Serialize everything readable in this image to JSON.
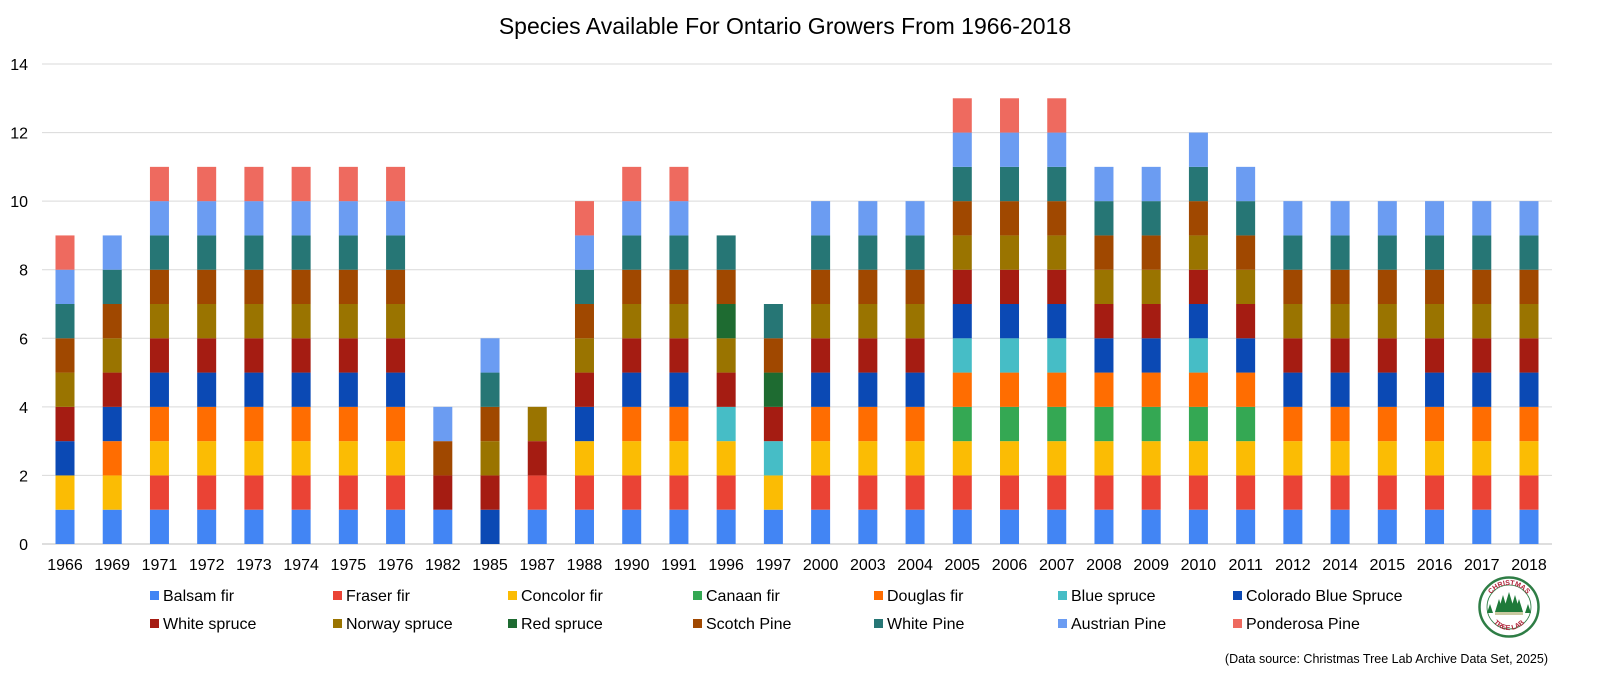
{
  "chart_data": {
    "type": "bar",
    "stacked": true,
    "title": "Species Available For Ontario Growers From 1966-2018",
    "xlabel": "",
    "ylabel": "",
    "ylim": [
      0,
      14
    ],
    "yticks": [
      0,
      2,
      4,
      6,
      8,
      10,
      12,
      14
    ],
    "grid": true,
    "legend_position": "bottom",
    "categories": [
      "1966",
      "1969",
      "1971",
      "1972",
      "1973",
      "1974",
      "1975",
      "1976",
      "1982",
      "1985",
      "1987",
      "1988",
      "1990",
      "1991",
      "1996",
      "1997",
      "2000",
      "2003",
      "2004",
      "2005",
      "2006",
      "2007",
      "2008",
      "2009",
      "2010",
      "2011",
      "2012",
      "2014",
      "2015",
      "2016",
      "2017",
      "2018"
    ],
    "series": [
      {
        "name": "Balsam fir",
        "color": "#4285f4",
        "values": [
          1,
          1,
          1,
          1,
          1,
          1,
          1,
          1,
          1,
          0,
          1,
          1,
          1,
          1,
          1,
          1,
          1,
          1,
          1,
          1,
          1,
          1,
          1,
          1,
          1,
          1,
          1,
          1,
          1,
          1,
          1,
          1
        ]
      },
      {
        "name": "Fraser fir",
        "color": "#ea4335",
        "values": [
          0,
          0,
          1,
          1,
          1,
          1,
          1,
          1,
          0,
          0,
          1,
          1,
          1,
          1,
          1,
          0,
          1,
          1,
          1,
          1,
          1,
          1,
          1,
          1,
          1,
          1,
          1,
          1,
          1,
          1,
          1,
          1
        ]
      },
      {
        "name": "Concolor fir",
        "color": "#fbbc04",
        "values": [
          1,
          1,
          1,
          1,
          1,
          1,
          1,
          1,
          0,
          0,
          0,
          1,
          1,
          1,
          1,
          1,
          1,
          1,
          1,
          1,
          1,
          1,
          1,
          1,
          1,
          1,
          1,
          1,
          1,
          1,
          1,
          1
        ]
      },
      {
        "name": "Canaan fir",
        "color": "#34a853",
        "values": [
          0,
          0,
          0,
          0,
          0,
          0,
          0,
          0,
          0,
          0,
          0,
          0,
          0,
          0,
          0,
          0,
          0,
          0,
          0,
          1,
          1,
          1,
          1,
          1,
          1,
          1,
          0,
          0,
          0,
          0,
          0,
          0
        ]
      },
      {
        "name": "Douglas fir",
        "color": "#ff6d01",
        "values": [
          0,
          1,
          1,
          1,
          1,
          1,
          1,
          1,
          0,
          0,
          0,
          0,
          1,
          1,
          0,
          0,
          1,
          1,
          1,
          1,
          1,
          1,
          1,
          1,
          1,
          1,
          1,
          1,
          1,
          1,
          1,
          1
        ]
      },
      {
        "name": "Blue spruce",
        "color": "#46bdc6",
        "values": [
          0,
          0,
          0,
          0,
          0,
          0,
          0,
          0,
          0,
          0,
          0,
          0,
          0,
          0,
          1,
          1,
          0,
          0,
          0,
          1,
          1,
          1,
          0,
          0,
          1,
          0,
          0,
          0,
          0,
          0,
          0,
          0
        ]
      },
      {
        "name": "Colorado Blue Spruce",
        "color": "#0b49b4",
        "values": [
          1,
          1,
          1,
          1,
          1,
          1,
          1,
          1,
          0,
          1,
          0,
          1,
          1,
          1,
          0,
          0,
          1,
          1,
          1,
          1,
          1,
          1,
          1,
          1,
          1,
          1,
          1,
          1,
          1,
          1,
          1,
          1
        ]
      },
      {
        "name": "White spruce",
        "color": "#a51c12",
        "values": [
          1,
          1,
          1,
          1,
          1,
          1,
          1,
          1,
          1,
          1,
          1,
          1,
          1,
          1,
          1,
          1,
          1,
          1,
          1,
          1,
          1,
          1,
          1,
          1,
          1,
          1,
          1,
          1,
          1,
          1,
          1,
          1
        ]
      },
      {
        "name": "Norway spruce",
        "color": "#9a7400",
        "values": [
          1,
          1,
          1,
          1,
          1,
          1,
          1,
          1,
          0,
          1,
          1,
          1,
          1,
          1,
          1,
          0,
          1,
          1,
          1,
          1,
          1,
          1,
          1,
          1,
          1,
          1,
          1,
          1,
          1,
          1,
          1,
          1
        ]
      },
      {
        "name": "Red spruce",
        "color": "#1e6b31",
        "values": [
          0,
          0,
          0,
          0,
          0,
          0,
          0,
          0,
          0,
          0,
          0,
          0,
          0,
          0,
          1,
          1,
          0,
          0,
          0,
          0,
          0,
          0,
          0,
          0,
          0,
          0,
          0,
          0,
          0,
          0,
          0,
          0
        ]
      },
      {
        "name": "Scotch Pine",
        "color": "#a04800",
        "values": [
          1,
          1,
          1,
          1,
          1,
          1,
          1,
          1,
          1,
          1,
          0,
          1,
          1,
          1,
          1,
          1,
          1,
          1,
          1,
          1,
          1,
          1,
          1,
          1,
          1,
          1,
          1,
          1,
          1,
          1,
          1,
          1
        ]
      },
      {
        "name": "White Pine",
        "color": "#267675",
        "values": [
          1,
          1,
          1,
          1,
          1,
          1,
          1,
          1,
          0,
          1,
          0,
          1,
          1,
          1,
          1,
          1,
          1,
          1,
          1,
          1,
          1,
          1,
          1,
          1,
          1,
          1,
          1,
          1,
          1,
          1,
          1,
          1
        ]
      },
      {
        "name": "Austrian Pine",
        "color": "#6b9cf2",
        "values": [
          1,
          1,
          1,
          1,
          1,
          1,
          1,
          1,
          1,
          1,
          0,
          1,
          1,
          1,
          0,
          0,
          1,
          1,
          1,
          1,
          1,
          1,
          1,
          1,
          1,
          1,
          1,
          1,
          1,
          1,
          1,
          1
        ]
      },
      {
        "name": "Ponderosa Pine",
        "color": "#ee6a5f",
        "values": [
          1,
          0,
          1,
          1,
          1,
          1,
          1,
          1,
          0,
          0,
          0,
          1,
          1,
          1,
          0,
          0,
          0,
          0,
          0,
          1,
          1,
          1,
          0,
          0,
          0,
          0,
          0,
          0,
          0,
          0,
          0,
          0
        ]
      }
    ],
    "totals": [
      9,
      9,
      11,
      11,
      11,
      11,
      11,
      11,
      4,
      6,
      4,
      10,
      11,
      11,
      9,
      7,
      10,
      10,
      10,
      13,
      13,
      13,
      11,
      11,
      12,
      11,
      10,
      10,
      10,
      10,
      10,
      10
    ]
  },
  "source_note": "(Data source: Christmas Tree Lab Archive Data Set, 2025)",
  "logo": {
    "top_text": "CHRISTMAS",
    "bottom_text": "TREE LAB"
  }
}
